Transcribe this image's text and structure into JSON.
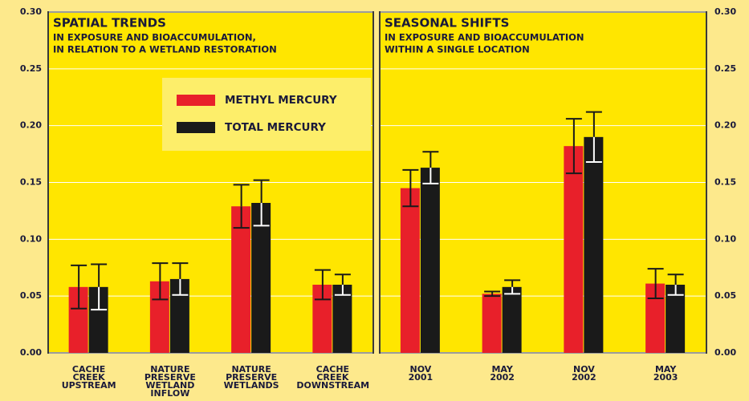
{
  "chart_data": [
    {
      "type": "bar",
      "title": "SPATIAL TRENDS",
      "subtitle": [
        "IN EXPOSURE AND BIOACCUMULATION,",
        "IN RELATION TO A WETLAND RESTORATION"
      ],
      "categories": [
        "CACHE CREEK UPSTREAM",
        "NATURE PRESERVE WETLAND INFLOW",
        "NATURE PRESERVE WETLANDS",
        "CACHE CREEK DOWNSTREAM"
      ],
      "series": [
        {
          "name": "METHYL MERCURY",
          "color": "#e8202a",
          "values": [
            0.058,
            0.063,
            0.129,
            0.06
          ],
          "errors": [
            0.019,
            0.016,
            0.019,
            0.013
          ]
        },
        {
          "name": "TOTAL MERCURY",
          "color": "#1a1a1a",
          "values": [
            0.058,
            0.065,
            0.132,
            0.06
          ],
          "errors": [
            0.02,
            0.014,
            0.02,
            0.009
          ]
        }
      ],
      "ylim": [
        0,
        0.3
      ],
      "yticks": [
        {
          "value": 0,
          "label": "0.00"
        },
        {
          "value": 0.05,
          "label": "0.05"
        },
        {
          "value": 0.1,
          "label": "0.10"
        },
        {
          "value": 0.15,
          "label": "0.15"
        },
        {
          "value": 0.2,
          "label": "0.20"
        },
        {
          "value": 0.25,
          "label": "0.25"
        },
        {
          "value": 0.3,
          "label": "0.30"
        }
      ],
      "yaxis_side": "left",
      "grid": true,
      "legend": "upper-right"
    },
    {
      "type": "bar",
      "title": "SEASONAL SHIFTS",
      "subtitle": [
        "IN EXPOSURE AND BIOACCUMULATION",
        "WITHIN A SINGLE LOCATION"
      ],
      "categories": [
        "NOV 2001",
        "MAY 2002",
        "NOV 2002",
        "MAY 2003"
      ],
      "series": [
        {
          "name": "METHYL MERCURY",
          "color": "#e8202a",
          "values": [
            0.145,
            0.052,
            0.182,
            0.061
          ],
          "errors": [
            0.016,
            0.002,
            0.024,
            0.013
          ]
        },
        {
          "name": "TOTAL MERCURY",
          "color": "#1a1a1a",
          "values": [
            0.163,
            0.058,
            0.19,
            0.06
          ],
          "errors": [
            0.014,
            0.006,
            0.022,
            0.009
          ]
        }
      ],
      "ylim": [
        0,
        0.3
      ],
      "yticks": [
        {
          "value": 0,
          "label": "0.00"
        },
        {
          "value": 0.05,
          "label": "0.05"
        },
        {
          "value": 0.1,
          "label": "0.10"
        },
        {
          "value": 0.15,
          "label": "0.15"
        },
        {
          "value": 0.2,
          "label": "0.20"
        },
        {
          "value": 0.25,
          "label": "0.25"
        },
        {
          "value": 0.3,
          "label": "0.30"
        }
      ],
      "yaxis_side": "right",
      "grid": true
    }
  ]
}
